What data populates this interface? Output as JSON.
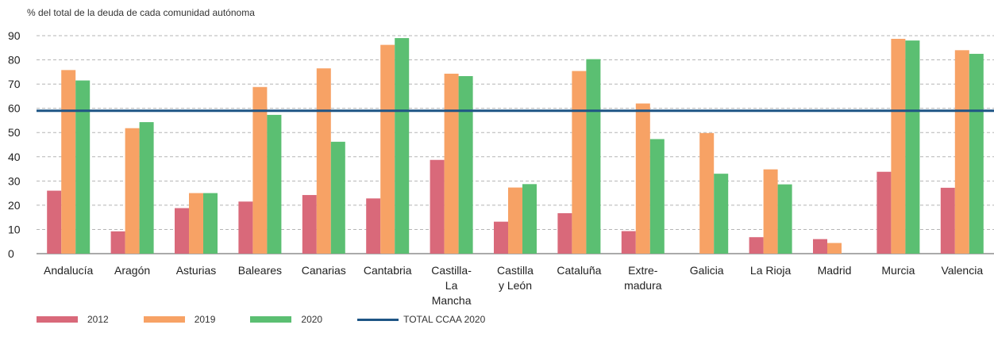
{
  "chart_data": {
    "type": "bar",
    "ylabel": "% del total de la deuda de cada comunidad autónoma",
    "ylim": [
      0,
      90
    ],
    "yticks": [
      "0",
      "10",
      "20",
      "30",
      "40",
      "50",
      "60",
      "70",
      "80",
      "90"
    ],
    "grid": "horizontal dashed",
    "legend_position": "bottom-left",
    "categories": [
      [
        "Andalucía"
      ],
      [
        "Aragón"
      ],
      [
        "Asturias"
      ],
      [
        "Baleares"
      ],
      [
        "Canarias"
      ],
      [
        "Cantabria"
      ],
      [
        "Castilla-",
        "La",
        "Mancha"
      ],
      [
        "Castilla",
        "y León"
      ],
      [
        "Cataluña"
      ],
      [
        "Extre-",
        "madura"
      ],
      [
        "Galicia"
      ],
      [
        "La Rioja"
      ],
      [
        "Madrid"
      ],
      [
        "Murcia"
      ],
      [
        "Valencia"
      ]
    ],
    "series": [
      {
        "name": "2012",
        "color": "#d9697a",
        "values": [
          26,
          9.2,
          18.8,
          21.5,
          24.2,
          22.8,
          38.7,
          13.2,
          16.7,
          9.3,
          0,
          6.8,
          6,
          33.8,
          27.2
        ]
      },
      {
        "name": "2019",
        "color": "#f7a265",
        "values": [
          75.8,
          51.8,
          25,
          68.8,
          76.5,
          86.2,
          74.3,
          27.3,
          75.4,
          62,
          49.8,
          34.8,
          4.4,
          88.7,
          84
        ]
      },
      {
        "name": "2020",
        "color": "#5bbf72",
        "values": [
          71.5,
          54.3,
          25,
          57.3,
          46.2,
          89,
          73.3,
          28.7,
          80.3,
          47.3,
          33,
          28.6,
          0,
          88,
          82.5
        ]
      }
    ],
    "reference_line": {
      "name": "TOTAL CCAA 2020",
      "value": 59,
      "color": "#1e5585"
    }
  }
}
